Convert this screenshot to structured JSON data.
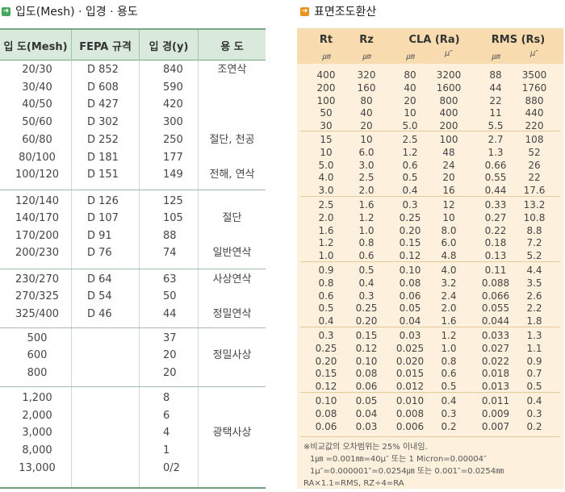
{
  "left_title": "입도(Mesh) · 입경 · 용도",
  "right_title": "표면조도환산",
  "left_table": {
    "headers": [
      "입 도(Mesh)",
      "FEPA 규격",
      "입 경(y)",
      "용 도"
    ],
    "groups": [
      {
        "rows": [
          [
            "20/30",
            "D 852",
            "840"
          ],
          [
            "30/40",
            "D 608",
            "590"
          ],
          [
            "40/50",
            "D 427",
            "420"
          ],
          [
            "50/60",
            "D 302",
            "300"
          ],
          [
            "60/80",
            "D 252",
            "250"
          ],
          [
            "80/100",
            "D 181",
            "177"
          ],
          [
            "100/120",
            "D 151",
            "149"
          ]
        ],
        "uses": [
          {
            "row": 0,
            "text": "조연삭"
          },
          {
            "row": 4,
            "text": "절단, 천공"
          },
          {
            "row": 6,
            "text": "전해, 연삭"
          }
        ]
      },
      {
        "rows": [
          [
            "120/140",
            "D 126",
            "125"
          ],
          [
            "140/170",
            "D 107",
            "105"
          ],
          [
            "170/200",
            "D 91",
            "88"
          ],
          [
            "200/230",
            "D 76",
            "74"
          ]
        ],
        "uses": [
          {
            "row": 1,
            "text": "절단"
          },
          {
            "row": 3,
            "text": "일반연삭"
          }
        ]
      },
      {
        "rows": [
          [
            "230/270",
            "D 64",
            "63"
          ],
          [
            "270/325",
            "D 54",
            "50"
          ],
          [
            "325/400",
            "D 46",
            "44"
          ]
        ],
        "uses": [
          {
            "row": 0,
            "text": "사상연삭"
          },
          {
            "row": 2,
            "text": "정밀연삭"
          }
        ]
      },
      {
        "rows": [
          [
            "500",
            "",
            "37"
          ],
          [
            "600",
            "",
            "20"
          ],
          [
            "800",
            "",
            "20"
          ]
        ],
        "uses": [
          {
            "row": 1,
            "text": "정밀사상"
          }
        ]
      },
      {
        "rows": [
          [
            "1,200",
            "",
            "8"
          ],
          [
            "2,000",
            "",
            "6"
          ],
          [
            "3,000",
            "",
            "4"
          ],
          [
            "8,000",
            "",
            "1"
          ],
          [
            "13,000",
            "",
            "0/2"
          ]
        ],
        "uses": [
          {
            "row": 2,
            "text": "광택사상"
          }
        ]
      }
    ]
  },
  "right_table": {
    "headers": [
      {
        "label": "Rt",
        "unit": "㎛"
      },
      {
        "label": "Rz",
        "unit": "㎛"
      },
      {
        "label": "CLA (Ra)",
        "units": [
          "㎛",
          "μ″"
        ]
      },
      {
        "label": "RMS (Rs)",
        "units": [
          "㎛",
          "μ″"
        ]
      }
    ],
    "groups": [
      [
        [
          "400",
          "320",
          "80",
          "3200",
          "88",
          "3500"
        ],
        [
          "200",
          "160",
          "40",
          "1600",
          "44",
          "1760"
        ],
        [
          "100",
          "80",
          "20",
          "800",
          "22",
          "880"
        ],
        [
          "50",
          "40",
          "10",
          "400",
          "11",
          "440"
        ],
        [
          "30",
          "20",
          "5.0",
          "200",
          "5.5",
          "220"
        ]
      ],
      [
        [
          "15",
          "10",
          "2.5",
          "100",
          "2.7",
          "108"
        ],
        [
          "10",
          "6.0",
          "1.2",
          "48",
          "1.3",
          "52"
        ],
        [
          "5.0",
          "3.0",
          "0.6",
          "24",
          "0.66",
          "26"
        ],
        [
          "4.0",
          "2.5",
          "0.5",
          "20",
          "0.55",
          "22"
        ],
        [
          "3.0",
          "2.0",
          "0.4",
          "16",
          "0.44",
          "17.6"
        ]
      ],
      [
        [
          "2.5",
          "1.6",
          "0.3",
          "12",
          "0.33",
          "13.2"
        ],
        [
          "2.0",
          "1.2",
          "0.25",
          "10",
          "0.27",
          "10.8"
        ],
        [
          "1.6",
          "1.0",
          "0.20",
          "8.0",
          "0.22",
          "8.8"
        ],
        [
          "1.2",
          "0.8",
          "0.15",
          "6.0",
          "0.18",
          "7.2"
        ],
        [
          "1.0",
          "0.6",
          "0.12",
          "4.8",
          "0.13",
          "5.2"
        ]
      ],
      [
        [
          "0.9",
          "0.5",
          "0.10",
          "4.0",
          "0.11",
          "4.4"
        ],
        [
          "0.8",
          "0.4",
          "0.08",
          "3.2",
          "0.088",
          "3.5"
        ],
        [
          "0.6",
          "0.3",
          "0.06",
          "2.4",
          "0.066",
          "2.6"
        ],
        [
          "0.5",
          "0.25",
          "0.05",
          "2.0",
          "0.055",
          "2.2"
        ],
        [
          "0.4",
          "0.20",
          "0.04",
          "1.6",
          "0.044",
          "1.8"
        ]
      ],
      [
        [
          "0.3",
          "0.15",
          "0.03",
          "1.2",
          "0.033",
          "1.3"
        ],
        [
          "0.25",
          "0.12",
          "0.025",
          "1.0",
          "0.027",
          "1.1"
        ],
        [
          "0.20",
          "0.10",
          "0.020",
          "0.8",
          "0.022",
          "0.9"
        ],
        [
          "0.15",
          "0.08",
          "0.015",
          "0.6",
          "0.018",
          "0.7"
        ],
        [
          "0.12",
          "0.06",
          "0.012",
          "0.5",
          "0.013",
          "0.5"
        ]
      ],
      [
        [
          "0.10",
          "0.05",
          "0.010",
          "0.4",
          "0.011",
          "0.4"
        ],
        [
          "0.08",
          "0.04",
          "0.008",
          "0.3",
          "0.009",
          "0.3"
        ],
        [
          "0.06",
          "0.03",
          "0.006",
          "0.2",
          "0.007",
          "0.2"
        ]
      ]
    ],
    "notes": [
      "※비교값의 오차범위는 25% 이내임.",
      "1㎛ =0.001㎜=40μ″ 또는 1 Micron=0.00004″",
      "1μ″=0.000001″=0.0254㎛ 또는 0.001″=0.0254㎜",
      "RA×1.1=RMS, RZ÷4=RA"
    ]
  },
  "colors": {
    "left_header_bg": "#d9e9dc",
    "left_accent": "#44a85c",
    "right_header_bg": "#f8dcb0",
    "right_body_bg": "#fdf1dd",
    "right_accent": "#e8931e"
  },
  "icons": {
    "left_title_icon": "arrow-right-icon",
    "right_title_icon": "arrow-right-icon"
  }
}
